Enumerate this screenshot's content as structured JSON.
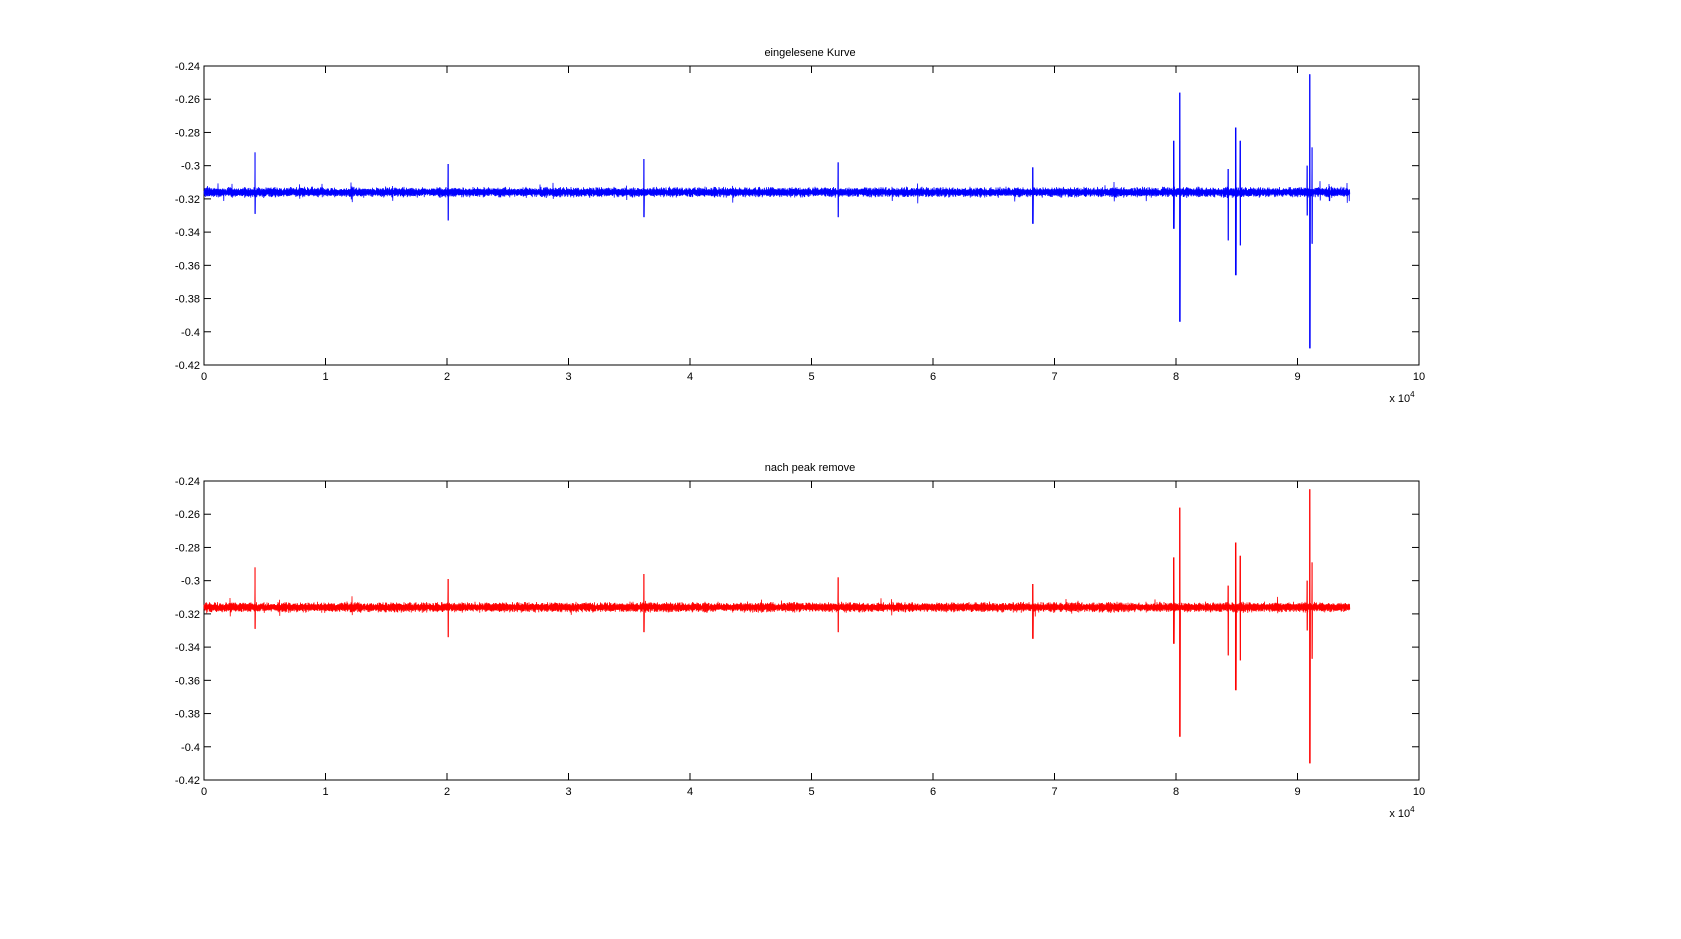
{
  "chart_data": [
    {
      "type": "line",
      "title": "eingelesene Kurve",
      "xlabel": "",
      "ylabel": "",
      "xlim": [
        0,
        100000
      ],
      "ylim": [
        -0.42,
        -0.24
      ],
      "x_ticks": [
        0,
        1,
        2,
        3,
        4,
        5,
        6,
        7,
        8,
        9,
        10
      ],
      "x_tick_labels": [
        "0",
        "1",
        "2",
        "3",
        "4",
        "5",
        "6",
        "7",
        "8",
        "9",
        "10"
      ],
      "x_exponent_label": "x 10",
      "x_exponent_power": "4",
      "y_ticks": [
        -0.24,
        -0.26,
        -0.28,
        -0.3,
        -0.32,
        -0.34,
        -0.36,
        -0.38,
        -0.4,
        -0.42
      ],
      "y_tick_labels": [
        "-0.24",
        "-0.26",
        "-0.28",
        "-0.3",
        "-0.32",
        "-0.34",
        "-0.36",
        "-0.38",
        "-0.4",
        "-0.42"
      ],
      "grid": false,
      "color": "#0000ff",
      "series": [
        {
          "baseline": -0.316,
          "noise_amplitude": 0.0035,
          "x_end": 94300,
          "spikes": [
            {
              "x": 4200,
              "max": -0.292,
              "min": -0.329
            },
            {
              "x": 20100,
              "max": -0.299,
              "min": -0.333
            },
            {
              "x": 36200,
              "max": -0.296,
              "min": -0.331
            },
            {
              "x": 52200,
              "max": -0.298,
              "min": -0.331
            },
            {
              "x": 68200,
              "max": -0.301,
              "min": -0.335
            },
            {
              "x": 79800,
              "max": -0.285,
              "min": -0.338
            },
            {
              "x": 80300,
              "max": -0.256,
              "min": -0.394
            },
            {
              "x": 84300,
              "max": -0.302,
              "min": -0.345
            },
            {
              "x": 84900,
              "max": -0.277,
              "min": -0.366
            },
            {
              "x": 85300,
              "max": -0.285,
              "min": -0.348
            },
            {
              "x": 90800,
              "max": -0.3,
              "min": -0.33
            },
            {
              "x": 91000,
              "max": -0.245,
              "min": -0.41
            },
            {
              "x": 91200,
              "max": -0.289,
              "min": -0.347
            }
          ]
        }
      ]
    },
    {
      "type": "line",
      "title": "nach peak remove",
      "xlabel": "",
      "ylabel": "",
      "xlim": [
        0,
        100000
      ],
      "ylim": [
        -0.42,
        -0.24
      ],
      "x_ticks": [
        0,
        1,
        2,
        3,
        4,
        5,
        6,
        7,
        8,
        9,
        10
      ],
      "x_tick_labels": [
        "0",
        "1",
        "2",
        "3",
        "4",
        "5",
        "6",
        "7",
        "8",
        "9",
        "10"
      ],
      "x_exponent_label": "x 10",
      "x_exponent_power": "4",
      "y_ticks": [
        -0.24,
        -0.26,
        -0.28,
        -0.3,
        -0.32,
        -0.34,
        -0.36,
        -0.38,
        -0.4,
        -0.42
      ],
      "y_tick_labels": [
        "-0.24",
        "-0.26",
        "-0.28",
        "-0.3",
        "-0.32",
        "-0.34",
        "-0.36",
        "-0.38",
        "-0.4",
        "-0.42"
      ],
      "grid": false,
      "color": "#ff0000",
      "series": [
        {
          "baseline": -0.316,
          "noise_amplitude": 0.0035,
          "x_end": 94300,
          "spikes": [
            {
              "x": 4200,
              "max": -0.292,
              "min": -0.329
            },
            {
              "x": 20100,
              "max": -0.299,
              "min": -0.334
            },
            {
              "x": 36200,
              "max": -0.296,
              "min": -0.331
            },
            {
              "x": 52200,
              "max": -0.298,
              "min": -0.331
            },
            {
              "x": 68200,
              "max": -0.302,
              "min": -0.335
            },
            {
              "x": 79800,
              "max": -0.286,
              "min": -0.338
            },
            {
              "x": 80300,
              "max": -0.256,
              "min": -0.394
            },
            {
              "x": 84300,
              "max": -0.303,
              "min": -0.345
            },
            {
              "x": 84900,
              "max": -0.277,
              "min": -0.366
            },
            {
              "x": 85300,
              "max": -0.285,
              "min": -0.348
            },
            {
              "x": 90800,
              "max": -0.3,
              "min": -0.33
            },
            {
              "x": 91000,
              "max": -0.245,
              "min": -0.41
            },
            {
              "x": 91200,
              "max": -0.289,
              "min": -0.347
            }
          ]
        }
      ]
    }
  ]
}
